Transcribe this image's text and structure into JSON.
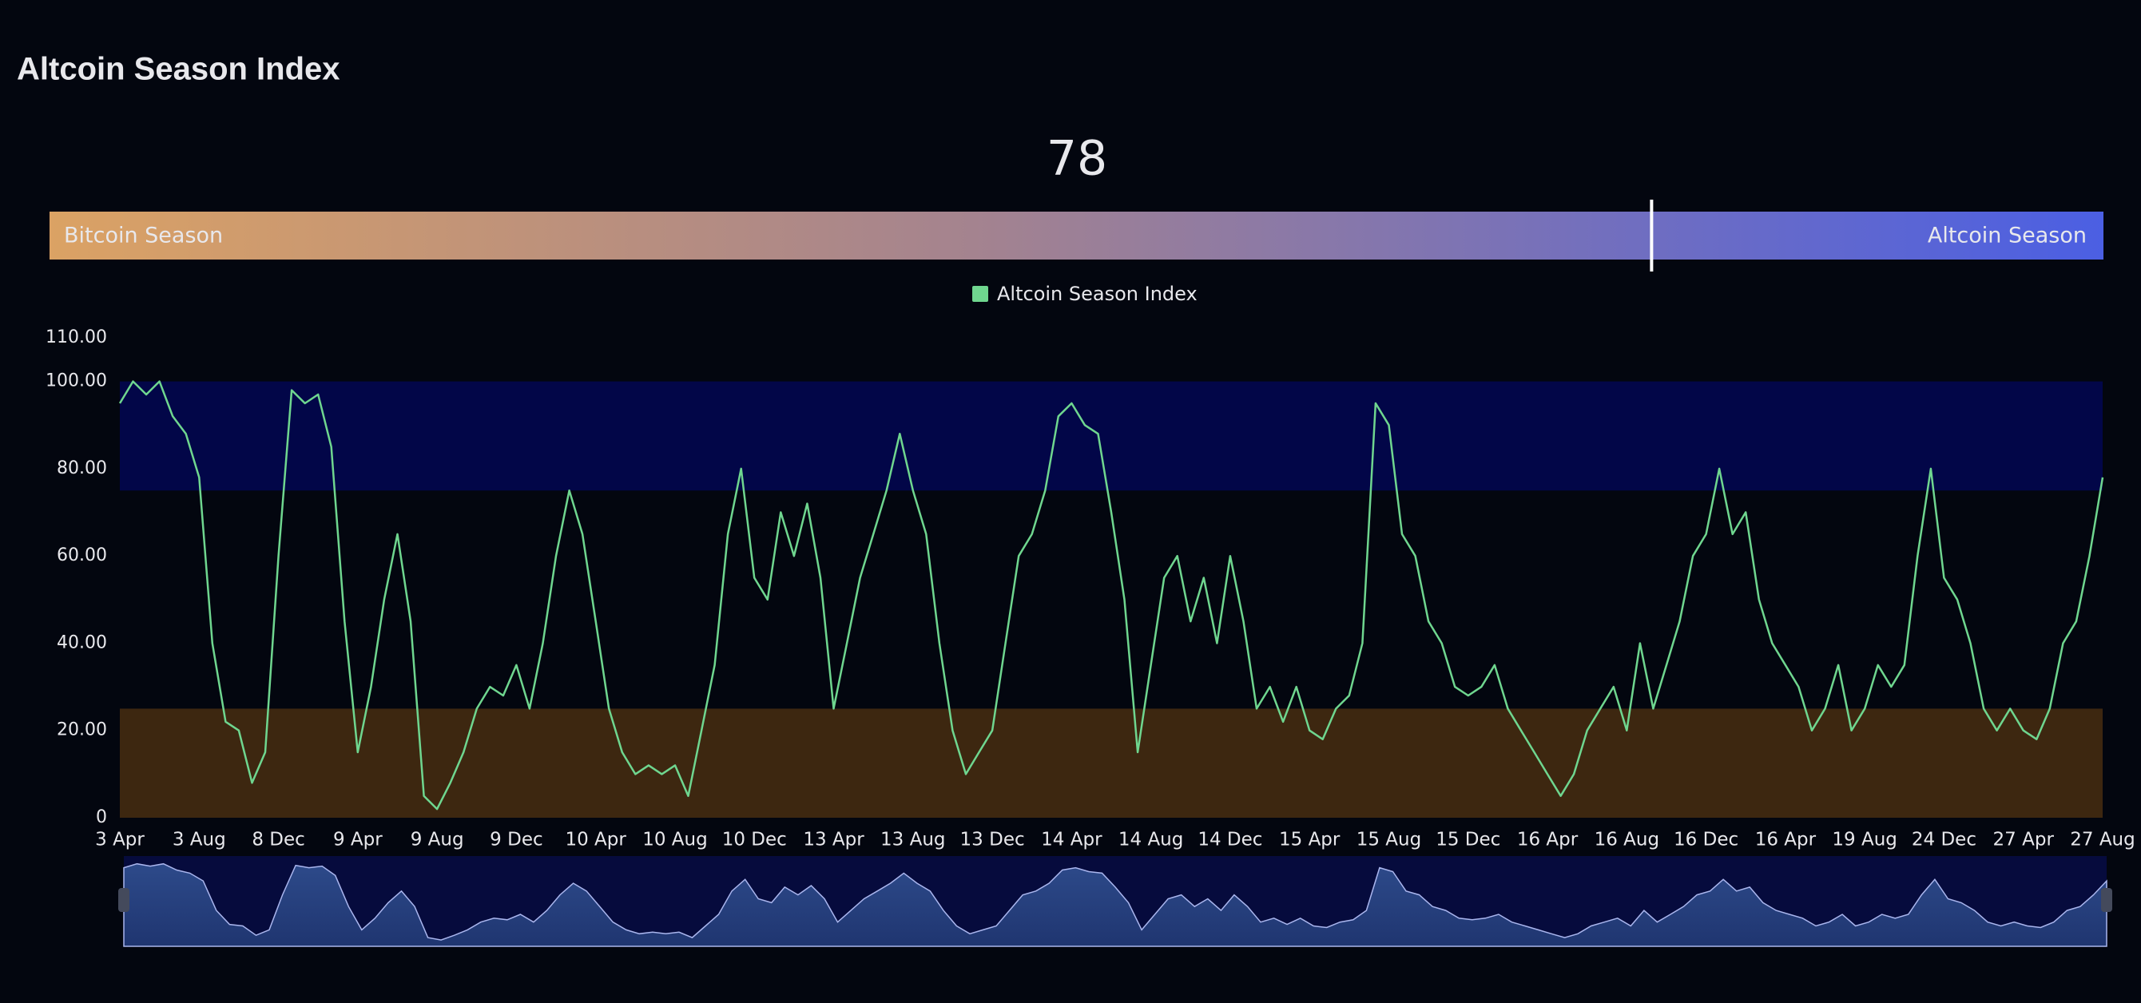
{
  "header": {
    "title": "Altcoin Season Index"
  },
  "gauge": {
    "value": 78,
    "range": [
      0,
      100
    ],
    "left_label": "Bitcoin Season",
    "right_label": "Altcoin Season"
  },
  "chart_data": {
    "type": "line",
    "categories": [
      "3 Apr",
      null,
      null,
      null,
      null,
      null,
      "3 Aug",
      null,
      null,
      null,
      null,
      null,
      "8 Dec",
      null,
      null,
      null,
      null,
      null,
      "9 Apr",
      null,
      null,
      null,
      null,
      null,
      "9 Aug",
      null,
      null,
      null,
      null,
      null,
      "9 Dec",
      null,
      null,
      null,
      null,
      null,
      "10 Apr",
      null,
      null,
      null,
      null,
      null,
      "10 Aug",
      null,
      null,
      null,
      null,
      null,
      "10 Dec",
      null,
      null,
      null,
      null,
      null,
      "13 Apr",
      null,
      null,
      null,
      null,
      null,
      "13 Aug",
      null,
      null,
      null,
      null,
      null,
      "13 Dec",
      null,
      null,
      null,
      null,
      null,
      "14 Apr",
      null,
      null,
      null,
      null,
      null,
      "14 Aug",
      null,
      null,
      null,
      null,
      null,
      "14 Dec",
      null,
      null,
      null,
      null,
      null,
      "15 Apr",
      null,
      null,
      null,
      null,
      null,
      "15 Aug",
      null,
      null,
      null,
      null,
      null,
      "15 Dec",
      null,
      null,
      null,
      null,
      null,
      "16 Apr",
      null,
      null,
      null,
      null,
      null,
      "16 Aug",
      null,
      null,
      null,
      null,
      null,
      "16 Dec",
      null,
      null,
      null,
      null,
      null,
      "16 Apr",
      null,
      null,
      null,
      null,
      null,
      "19 Aug",
      null,
      null,
      null,
      null,
      null,
      "24 Dec",
      null,
      null,
      null,
      null,
      null,
      "27 Apr",
      null,
      null,
      null,
      null,
      null,
      "27 Aug"
    ],
    "series": [
      {
        "name": "Altcoin Season Index",
        "color": "#6fd68f",
        "values": [
          95,
          100,
          97,
          100,
          92,
          88,
          78,
          40,
          22,
          20,
          8,
          15,
          60,
          98,
          95,
          97,
          85,
          45,
          15,
          30,
          50,
          65,
          45,
          5,
          2,
          8,
          15,
          25,
          30,
          28,
          35,
          25,
          40,
          60,
          75,
          65,
          45,
          25,
          15,
          10,
          12,
          10,
          12,
          5,
          20,
          35,
          65,
          80,
          55,
          50,
          70,
          60,
          72,
          55,
          25,
          40,
          55,
          65,
          75,
          88,
          75,
          65,
          40,
          20,
          10,
          15,
          20,
          40,
          60,
          65,
          75,
          92,
          95,
          90,
          88,
          70,
          50,
          15,
          35,
          55,
          60,
          45,
          55,
          40,
          60,
          45,
          25,
          30,
          22,
          30,
          20,
          18,
          25,
          28,
          40,
          95,
          90,
          65,
          60,
          45,
          40,
          30,
          28,
          30,
          35,
          25,
          20,
          15,
          10,
          5,
          10,
          20,
          25,
          30,
          20,
          40,
          25,
          35,
          45,
          60,
          65,
          80,
          65,
          70,
          50,
          40,
          35,
          30,
          20,
          25,
          35,
          20,
          25,
          35,
          30,
          35,
          60,
          80,
          55,
          50,
          40,
          25,
          20,
          25,
          20,
          18,
          25,
          40,
          45,
          60,
          78
        ]
      }
    ],
    "ylim": [
      0,
      110
    ],
    "yticks": [
      0,
      {
        "value": 20,
        "label": "20.00"
      },
      {
        "value": 40,
        "label": "40.00"
      },
      {
        "value": 60,
        "label": "60.00"
      },
      {
        "value": 80,
        "label": "80.00"
      },
      {
        "value": 100,
        "label": "100.00"
      },
      {
        "value": 110,
        "label": "110.00"
      }
    ],
    "bands": [
      {
        "from": 75,
        "to": 100,
        "color": "#020648"
      },
      {
        "from": 0,
        "to": 25,
        "color": "#3d2710"
      }
    ],
    "navigator": true
  }
}
